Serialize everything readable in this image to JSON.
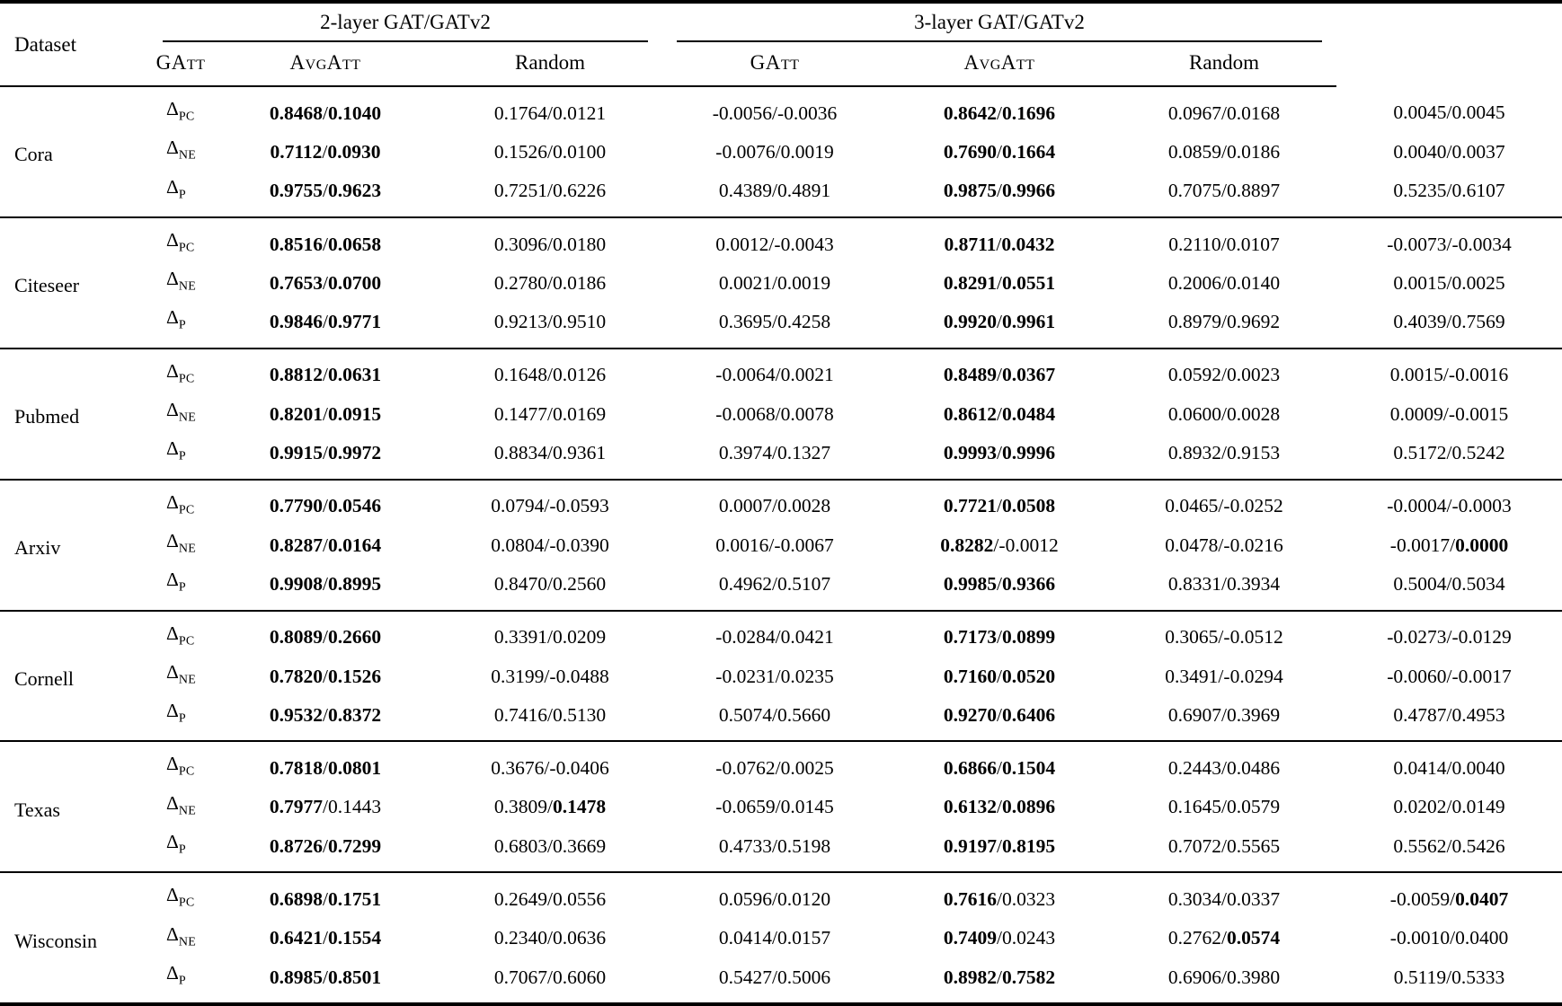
{
  "page": {
    "background_color": "#ffffff",
    "text_color": "#000000",
    "rule_color": "#000000"
  },
  "table": {
    "corner_header": "Dataset",
    "groups": [
      "2-layer GAT/GATv2",
      "3-layer GAT/GATv2"
    ],
    "methods": [
      {
        "label": "GAtt",
        "sc": true
      },
      {
        "label": "AvgAtt",
        "sc": true
      },
      {
        "label": "Random",
        "sc": false
      }
    ],
    "metric_symbol": "Δ",
    "metric_subscripts": [
      "PC",
      "NE",
      "P"
    ],
    "datasets": [
      {
        "name": "Cora",
        "rows": [
          [
            [
              "0.8468/0.1040",
              "11"
            ],
            [
              "0.1764/0.0121",
              "00"
            ],
            [
              "-0.0056/-0.0036",
              "00"
            ],
            [
              "0.8642/0.1696",
              "11"
            ],
            [
              "0.0967/0.0168",
              "00"
            ],
            [
              "0.0045/0.0045",
              "00"
            ]
          ],
          [
            [
              "0.7112/0.0930",
              "11"
            ],
            [
              "0.1526/0.0100",
              "00"
            ],
            [
              "-0.0076/0.0019",
              "00"
            ],
            [
              "0.7690/0.1664",
              "11"
            ],
            [
              "0.0859/0.0186",
              "00"
            ],
            [
              "0.0040/0.0037",
              "00"
            ]
          ],
          [
            [
              "0.9755/0.9623",
              "11"
            ],
            [
              "0.7251/0.6226",
              "00"
            ],
            [
              "0.4389/0.4891",
              "00"
            ],
            [
              "0.9875/0.9966",
              "11"
            ],
            [
              "0.7075/0.8897",
              "00"
            ],
            [
              "0.5235/0.6107",
              "00"
            ]
          ]
        ]
      },
      {
        "name": "Citeseer",
        "rows": [
          [
            [
              "0.8516/0.0658",
              "11"
            ],
            [
              "0.3096/0.0180",
              "00"
            ],
            [
              "0.0012/-0.0043",
              "00"
            ],
            [
              "0.8711/0.0432",
              "11"
            ],
            [
              "0.2110/0.0107",
              "00"
            ],
            [
              "-0.0073/-0.0034",
              "00"
            ]
          ],
          [
            [
              "0.7653/0.0700",
              "11"
            ],
            [
              "0.2780/0.0186",
              "00"
            ],
            [
              "0.0021/0.0019",
              "00"
            ],
            [
              "0.8291/0.0551",
              "11"
            ],
            [
              "0.2006/0.0140",
              "00"
            ],
            [
              "0.0015/0.0025",
              "00"
            ]
          ],
          [
            [
              "0.9846/0.9771",
              "11"
            ],
            [
              "0.9213/0.9510",
              "00"
            ],
            [
              "0.3695/0.4258",
              "00"
            ],
            [
              "0.9920/0.9961",
              "11"
            ],
            [
              "0.8979/0.9692",
              "00"
            ],
            [
              "0.4039/0.7569",
              "00"
            ]
          ]
        ]
      },
      {
        "name": "Pubmed",
        "rows": [
          [
            [
              "0.8812/0.0631",
              "11"
            ],
            [
              "0.1648/0.0126",
              "00"
            ],
            [
              "-0.0064/0.0021",
              "00"
            ],
            [
              "0.8489/0.0367",
              "11"
            ],
            [
              "0.0592/0.0023",
              "00"
            ],
            [
              "0.0015/-0.0016",
              "00"
            ]
          ],
          [
            [
              "0.8201/0.0915",
              "11"
            ],
            [
              "0.1477/0.0169",
              "00"
            ],
            [
              "-0.0068/0.0078",
              "00"
            ],
            [
              "0.8612/0.0484",
              "11"
            ],
            [
              "0.0600/0.0028",
              "00"
            ],
            [
              "0.0009/-0.0015",
              "00"
            ]
          ],
          [
            [
              "0.9915/0.9972",
              "11"
            ],
            [
              "0.8834/0.9361",
              "00"
            ],
            [
              "0.3974/0.1327",
              "00"
            ],
            [
              "0.9993/0.9996",
              "11"
            ],
            [
              "0.8932/0.9153",
              "00"
            ],
            [
              "0.5172/0.5242",
              "00"
            ]
          ]
        ]
      },
      {
        "name": "Arxiv",
        "rows": [
          [
            [
              "0.7790/0.0546",
              "11"
            ],
            [
              "0.0794/-0.0593",
              "00"
            ],
            [
              "0.0007/0.0028",
              "00"
            ],
            [
              "0.7721/0.0508",
              "11"
            ],
            [
              "0.0465/-0.0252",
              "00"
            ],
            [
              "-0.0004/-0.0003",
              "00"
            ]
          ],
          [
            [
              "0.8287/0.0164",
              "11"
            ],
            [
              "0.0804/-0.0390",
              "00"
            ],
            [
              "0.0016/-0.0067",
              "00"
            ],
            [
              "0.8282/-0.0012",
              "10"
            ],
            [
              "0.0478/-0.0216",
              "00"
            ],
            [
              "-0.0017/0.0000",
              "01"
            ]
          ],
          [
            [
              "0.9908/0.8995",
              "11"
            ],
            [
              "0.8470/0.2560",
              "00"
            ],
            [
              "0.4962/0.5107",
              "00"
            ],
            [
              "0.9985/0.9366",
              "11"
            ],
            [
              "0.8331/0.3934",
              "00"
            ],
            [
              "0.5004/0.5034",
              "00"
            ]
          ]
        ]
      },
      {
        "name": "Cornell",
        "rows": [
          [
            [
              "0.8089/0.2660",
              "11"
            ],
            [
              "0.3391/0.0209",
              "00"
            ],
            [
              "-0.0284/0.0421",
              "00"
            ],
            [
              "0.7173/0.0899",
              "11"
            ],
            [
              "0.3065/-0.0512",
              "00"
            ],
            [
              "-0.0273/-0.0129",
              "00"
            ]
          ],
          [
            [
              "0.7820/0.1526",
              "11"
            ],
            [
              "0.3199/-0.0488",
              "00"
            ],
            [
              "-0.0231/0.0235",
              "00"
            ],
            [
              "0.7160/0.0520",
              "11"
            ],
            [
              "0.3491/-0.0294",
              "00"
            ],
            [
              "-0.0060/-0.0017",
              "00"
            ]
          ],
          [
            [
              "0.9532/0.8372",
              "11"
            ],
            [
              "0.7416/0.5130",
              "00"
            ],
            [
              "0.5074/0.5660",
              "00"
            ],
            [
              "0.9270/0.6406",
              "11"
            ],
            [
              "0.6907/0.3969",
              "00"
            ],
            [
              "0.4787/0.4953",
              "00"
            ]
          ]
        ]
      },
      {
        "name": "Texas",
        "rows": [
          [
            [
              "0.7818/0.0801",
              "11"
            ],
            [
              "0.3676/-0.0406",
              "00"
            ],
            [
              "-0.0762/0.0025",
              "00"
            ],
            [
              "0.6866/0.1504",
              "11"
            ],
            [
              "0.2443/0.0486",
              "00"
            ],
            [
              "0.0414/0.0040",
              "00"
            ]
          ],
          [
            [
              "0.7977/0.1443",
              "10"
            ],
            [
              "0.3809/0.1478",
              "01"
            ],
            [
              "-0.0659/0.0145",
              "00"
            ],
            [
              "0.6132/0.0896",
              "11"
            ],
            [
              "0.1645/0.0579",
              "00"
            ],
            [
              "0.0202/0.0149",
              "00"
            ]
          ],
          [
            [
              "0.8726/0.7299",
              "11"
            ],
            [
              "0.6803/0.3669",
              "00"
            ],
            [
              "0.4733/0.5198",
              "00"
            ],
            [
              "0.9197/0.8195",
              "11"
            ],
            [
              "0.7072/0.5565",
              "00"
            ],
            [
              "0.5562/0.5426",
              "00"
            ]
          ]
        ]
      },
      {
        "name": "Wisconsin",
        "rows": [
          [
            [
              "0.6898/0.1751",
              "11"
            ],
            [
              "0.2649/0.0556",
              "00"
            ],
            [
              "0.0596/0.0120",
              "00"
            ],
            [
              "0.7616/0.0323",
              "10"
            ],
            [
              "0.3034/0.0337",
              "00"
            ],
            [
              "-0.0059/0.0407",
              "01"
            ]
          ],
          [
            [
              "0.6421/0.1554",
              "11"
            ],
            [
              "0.2340/0.0636",
              "00"
            ],
            [
              "0.0414/0.0157",
              "00"
            ],
            [
              "0.7409/0.0243",
              "10"
            ],
            [
              "0.2762/0.0574",
              "01"
            ],
            [
              "-0.0010/0.0400",
              "00"
            ]
          ],
          [
            [
              "0.8985/0.8501",
              "11"
            ],
            [
              "0.7067/0.6060",
              "00"
            ],
            [
              "0.5427/0.5006",
              "00"
            ],
            [
              "0.8982/0.7582",
              "11"
            ],
            [
              "0.6906/0.3980",
              "00"
            ],
            [
              "0.5119/0.5333",
              "00"
            ]
          ]
        ]
      }
    ]
  }
}
